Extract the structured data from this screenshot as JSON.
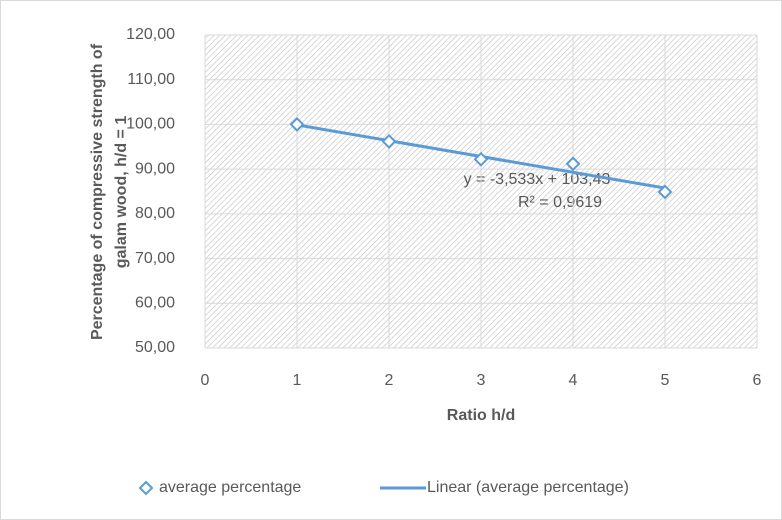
{
  "chart_data": {
    "type": "scatter",
    "x_label": "Ratio h/d",
    "y_label": [
      "Percentage of compressive strength of",
      "galam wood, h/d = 1"
    ],
    "annotations": [
      "y = -3,533x + 103,43",
      "R² = 0,9619"
    ],
    "series": [
      {
        "name": "average percentage",
        "color": "#5b9bd5",
        "style": "markers",
        "x": [
          1,
          2,
          3,
          4,
          5
        ],
        "values": [
          100,
          96.2,
          92.2,
          91.2,
          84.9
        ]
      },
      {
        "name": "Linear (average percentage)",
        "color": "#5b9bd5",
        "style": "line",
        "x": [
          1,
          5
        ],
        "values": [
          99.897,
          85.765
        ]
      }
    ],
    "xlim": [
      0,
      6
    ],
    "xticks": [
      0,
      1,
      2,
      3,
      4,
      5,
      6
    ],
    "ylim": [
      50,
      120
    ],
    "yticks": [
      {
        "value": 50,
        "label": "50,00"
      },
      {
        "value": 60,
        "label": "60,00"
      },
      {
        "value": 70,
        "label": "70,00"
      },
      {
        "value": 80,
        "label": "80,00"
      },
      {
        "value": 90,
        "label": "90,00"
      },
      {
        "value": 100,
        "label": "100,00"
      },
      {
        "value": 110,
        "label": "110,00"
      },
      {
        "value": 120,
        "label": "120,00"
      }
    ],
    "grid": true,
    "legend": "bottom"
  }
}
